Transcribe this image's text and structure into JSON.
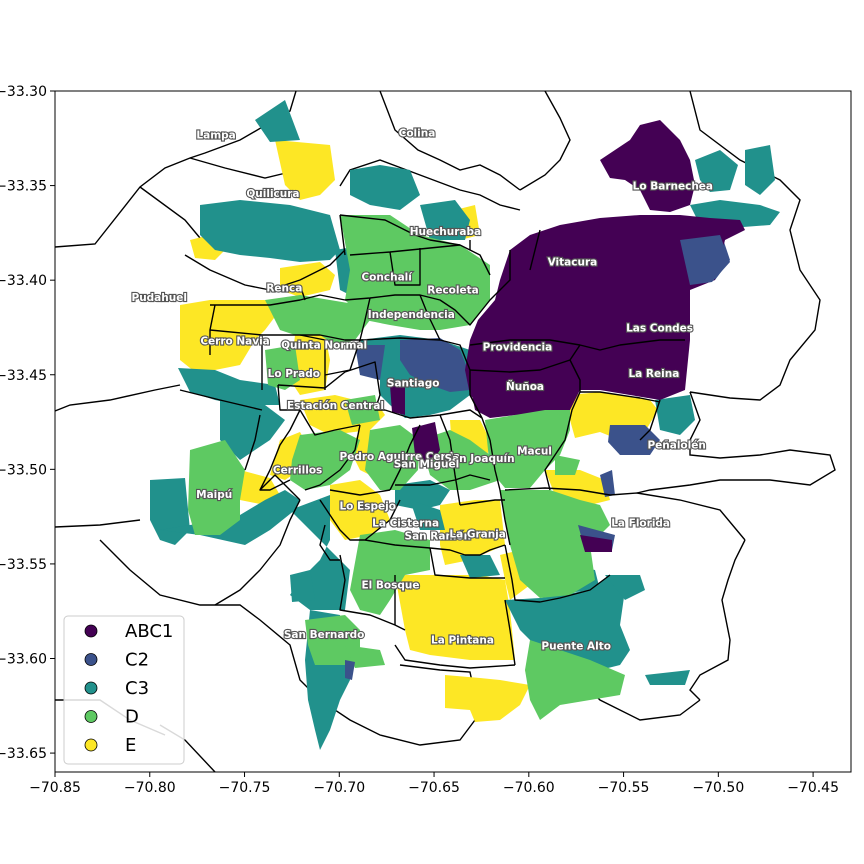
{
  "colors": {
    "ABC1": "#440154",
    "C2": "#3b528b",
    "C3": "#21918c",
    "D": "#5ec962",
    "E": "#fde725",
    "boundary": "#000000",
    "label_fill": "#ffffff"
  },
  "chart_data": {
    "type": "choropleth-map",
    "title": "",
    "xlabel": "",
    "ylabel": "",
    "xlim": [
      -70.85,
      -70.43
    ],
    "ylim": [
      -33.66,
      -33.3
    ],
    "xticks": [
      "−70.85",
      "−70.80",
      "−70.75",
      "−70.70",
      "−70.65",
      "−70.60",
      "−70.55",
      "−70.50",
      "−70.45"
    ],
    "yticks": [
      "−33.30",
      "−33.35",
      "−33.40",
      "−33.45",
      "−33.50",
      "−33.55",
      "−33.60",
      "−33.65"
    ],
    "legend_placement": "lower-left",
    "legend": [
      {
        "label": "ABC1",
        "color": "#440154"
      },
      {
        "label": "C2",
        "color": "#3b528b"
      },
      {
        "label": "C3",
        "color": "#21918c"
      },
      {
        "label": "D",
        "color": "#5ec962"
      },
      {
        "label": "E",
        "color": "#fde725"
      }
    ],
    "comunas": [
      {
        "name": "Lampa",
        "lon": -70.765,
        "lat": -33.323
      },
      {
        "name": "Colina",
        "lon": -70.659,
        "lat": -33.322
      },
      {
        "name": "Lo Barnechea",
        "lon": -70.524,
        "lat": -33.35
      },
      {
        "name": "Quilicura",
        "lon": -70.735,
        "lat": -33.354
      },
      {
        "name": "Huechuraba",
        "lon": -70.644,
        "lat": -33.374
      },
      {
        "name": "Vitacura",
        "lon": -70.577,
        "lat": -33.39
      },
      {
        "name": "Conchalí",
        "lon": -70.675,
        "lat": -33.398
      },
      {
        "name": "Renca",
        "lon": -70.729,
        "lat": -33.404
      },
      {
        "name": "Recoleta",
        "lon": -70.64,
        "lat": -33.405
      },
      {
        "name": "Pudahuel",
        "lon": -70.795,
        "lat": -33.409
      },
      {
        "name": "Independencia",
        "lon": -70.662,
        "lat": -33.418
      },
      {
        "name": "Las Condes",
        "lon": -70.531,
        "lat": -33.425
      },
      {
        "name": "Cerro Navia",
        "lon": -70.755,
        "lat": -33.432
      },
      {
        "name": "Quinta Normal",
        "lon": -70.708,
        "lat": -33.434
      },
      {
        "name": "Providencia",
        "lon": -70.606,
        "lat": -33.435
      },
      {
        "name": "Lo Prado",
        "lon": -70.724,
        "lat": -33.449
      },
      {
        "name": "La Reina",
        "lon": -70.534,
        "lat": -33.449
      },
      {
        "name": "Santiago",
        "lon": -70.661,
        "lat": -33.454
      },
      {
        "name": "Ñuñoa",
        "lon": -70.602,
        "lat": -33.456
      },
      {
        "name": "Estación Central",
        "lon": -70.702,
        "lat": -33.466
      },
      {
        "name": "Peñalolén",
        "lon": -70.522,
        "lat": -33.487
      },
      {
        "name": "Macul",
        "lon": -70.597,
        "lat": -33.49
      },
      {
        "name": "Pedro Aguirre Cerda",
        "lon": -70.668,
        "lat": -33.493
      },
      {
        "name": "San Joaquín",
        "lon": -70.626,
        "lat": -33.494
      },
      {
        "name": "San Miguel",
        "lon": -70.654,
        "lat": -33.497
      },
      {
        "name": "Cerrillos",
        "lon": -70.722,
        "lat": -33.5
      },
      {
        "name": "Maipú",
        "lon": -70.766,
        "lat": -33.513
      },
      {
        "name": "Lo Espejo",
        "lon": -70.685,
        "lat": -33.519
      },
      {
        "name": "La Florida",
        "lon": -70.541,
        "lat": -33.528
      },
      {
        "name": "La Cisterna",
        "lon": -70.665,
        "lat": -33.528
      },
      {
        "name": "San Ramón",
        "lon": -70.648,
        "lat": -33.535
      },
      {
        "name": "La Granja",
        "lon": -70.627,
        "lat": -33.534
      },
      {
        "name": "El Bosque",
        "lon": -70.673,
        "lat": -33.561
      },
      {
        "name": "San Bernardo",
        "lon": -70.708,
        "lat": -33.587
      },
      {
        "name": "La Pintana",
        "lon": -70.635,
        "lat": -33.59
      },
      {
        "name": "Puente Alto",
        "lon": -70.575,
        "lat": -33.593
      }
    ]
  }
}
